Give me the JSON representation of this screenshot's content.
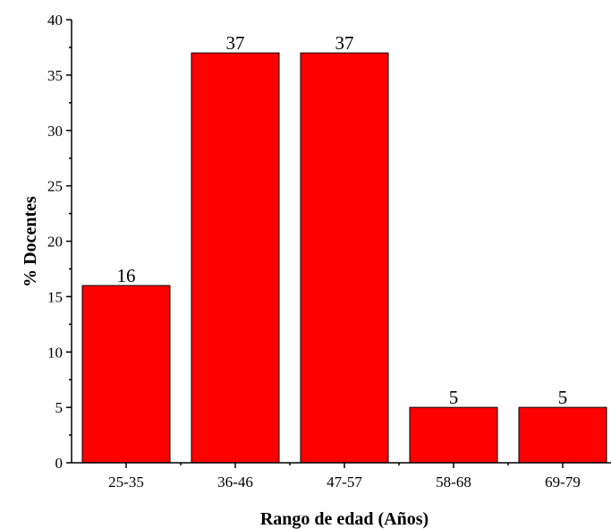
{
  "chart_data": {
    "type": "bar",
    "categories": [
      "25-35",
      "36-46",
      "47-57",
      "58-68",
      "69-79"
    ],
    "values": [
      16,
      37,
      37,
      5,
      5
    ],
    "data_labels": [
      "16",
      "37",
      "37",
      "5",
      "5"
    ],
    "title": "",
    "xlabel": "Rango de edad (Años)",
    "ylabel": "% Docentes",
    "ylim": [
      0,
      40
    ],
    "yticks": [
      0,
      5,
      10,
      15,
      20,
      25,
      30,
      35,
      40
    ],
    "ytick_labels": [
      "0",
      "5",
      "10",
      "15",
      "20",
      "25",
      "30",
      "35",
      "40"
    ],
    "grid": false,
    "legend": "none",
    "colors": {
      "bar": "#ff0000",
      "bar_edge": "#000000",
      "axis": "#000000"
    }
  }
}
